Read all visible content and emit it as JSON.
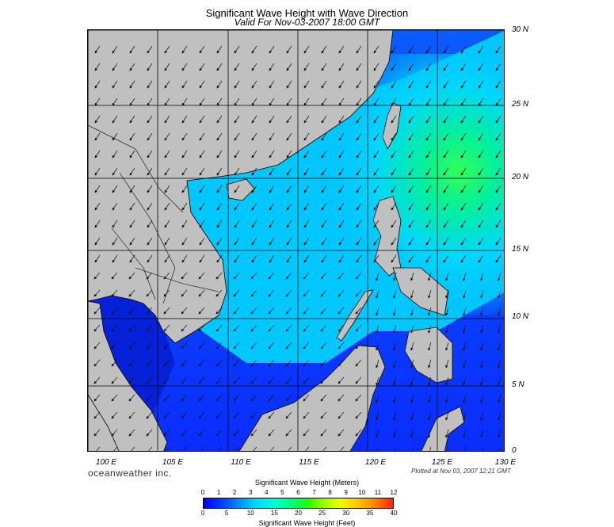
{
  "header": {
    "title": "Significant Wave Height with Wave Direction",
    "subtitle": "Valid For Nov-03-2007 18:00 GMT"
  },
  "latitude_labels": [
    "30 N",
    "25 N",
    "20 N",
    "15 N",
    "10 N",
    "5 N",
    "0"
  ],
  "longitude_labels": [
    "100 E",
    "105 E",
    "110 E",
    "115 E",
    "120 E",
    "125 E",
    "130 E"
  ],
  "footer": {
    "brand": "oceanweather inc.",
    "plotted": "Plotted at Nov 03, 2007 12:21 GMT"
  },
  "colorbar": {
    "meters_title": "Significant Wave Height (Meters)",
    "feet_title": "Significant Wave Height (Feet)",
    "meters_ticks": [
      "0",
      "1",
      "2",
      "3",
      "4",
      "5",
      "6",
      "7",
      "8",
      "9",
      "10",
      "11",
      "12"
    ],
    "feet_ticks": [
      "0",
      "5",
      "10",
      "15",
      "20",
      "25",
      "30",
      "35",
      "40"
    ]
  },
  "colors": {
    "land": "#c0c0c0",
    "low_wave": "#0a2dff",
    "mid_wave": "#00d8ff",
    "high_wave": "#00ff7a"
  }
}
